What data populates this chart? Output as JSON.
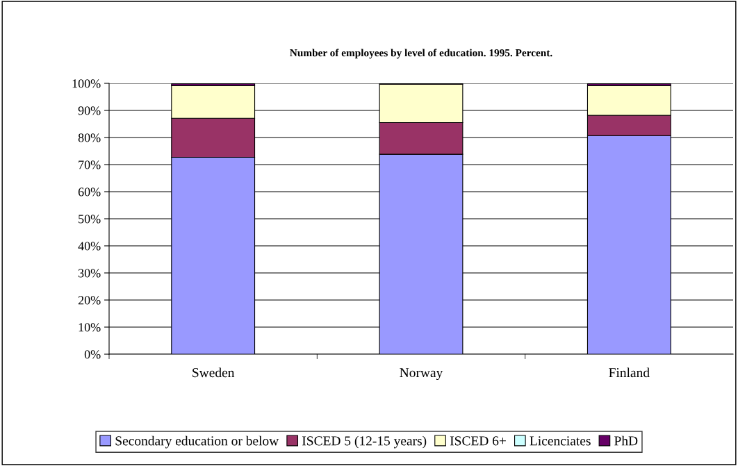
{
  "chart_data": {
    "type": "bar",
    "stacked": true,
    "title": "Number of employees by level of education. 1995. Percent.",
    "categories": [
      "Sweden",
      "Norway",
      "Finland"
    ],
    "series": [
      {
        "name": "Secondary education or below",
        "color": "#9999ff",
        "values": [
          72.7,
          73.8,
          80.7
        ]
      },
      {
        "name": "ISCED 5 (12-15 years)",
        "color": "#993366",
        "values": [
          14.4,
          11.7,
          7.5
        ]
      },
      {
        "name": "ISCED 6+",
        "color": "#ffffcc",
        "values": [
          12.1,
          14.2,
          11.0
        ]
      },
      {
        "name": "Licenciates",
        "color": "#ccffff",
        "values": [
          null,
          null,
          null
        ]
      },
      {
        "name": "PhD",
        "color": "#660066",
        "values": [
          0.7,
          0.3,
          0.7
        ]
      }
    ],
    "ylim": [
      0,
      100
    ],
    "yticks": [
      {
        "value": 0,
        "label": "0%"
      },
      {
        "value": 10,
        "label": "10%"
      },
      {
        "value": 20,
        "label": "20%"
      },
      {
        "value": 30,
        "label": "30%"
      },
      {
        "value": 40,
        "label": "40%"
      },
      {
        "value": 50,
        "label": "50%"
      },
      {
        "value": 60,
        "label": "60%"
      },
      {
        "value": 70,
        "label": "70%"
      },
      {
        "value": 80,
        "label": "80%"
      },
      {
        "value": 90,
        "label": "90%"
      },
      {
        "value": 100,
        "label": "100%"
      }
    ],
    "grid": "y",
    "legend": "bottom"
  }
}
